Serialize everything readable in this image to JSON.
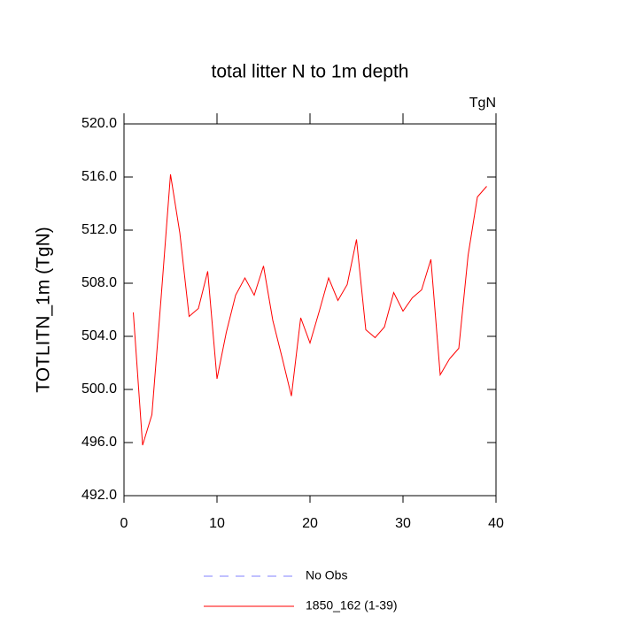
{
  "chart_data": {
    "type": "line",
    "title": "total litter N to 1m depth",
    "units_label": "TgN",
    "ylabel": "TOTLITN_1m  (TgN)",
    "x": [
      1,
      2,
      3,
      4,
      5,
      6,
      7,
      8,
      9,
      10,
      11,
      12,
      13,
      14,
      15,
      16,
      17,
      18,
      19,
      20,
      21,
      22,
      23,
      24,
      25,
      26,
      27,
      28,
      29,
      30,
      31,
      32,
      33,
      34,
      35,
      36,
      37,
      38,
      39
    ],
    "series": [
      {
        "name": "No Obs",
        "color": "#8080ff",
        "dashed": true,
        "values": [
          null,
          null,
          null,
          null,
          null,
          null,
          null,
          null,
          null,
          null,
          null,
          null,
          null,
          null,
          null,
          null,
          null,
          null,
          null,
          null,
          null,
          null,
          null,
          null,
          null,
          null,
          null,
          null,
          null,
          null,
          null,
          null,
          null,
          null,
          null,
          null,
          null,
          null,
          null
        ]
      },
      {
        "name": "1850_162 (1-39)",
        "color": "#ff0000",
        "dashed": false,
        "values": [
          505.8,
          495.8,
          498.1,
          507.0,
          516.2,
          511.8,
          505.5,
          506.1,
          508.9,
          500.8,
          504.3,
          507.1,
          508.4,
          507.1,
          509.3,
          505.2,
          502.4,
          499.5,
          505.4,
          503.5,
          505.9,
          508.4,
          506.7,
          507.9,
          511.3,
          504.5,
          503.9,
          504.7,
          507.3,
          505.9,
          506.9,
          507.5,
          509.8,
          501.1,
          502.3,
          503.1,
          510.1,
          514.5,
          515.3
        ]
      }
    ],
    "xlim": [
      0,
      40
    ],
    "xticks": [
      0,
      10,
      20,
      30,
      40
    ],
    "ylim": [
      492,
      520
    ],
    "yticks": [
      {
        "value": 492,
        "label": "492.0"
      },
      {
        "value": 496,
        "label": "496.0"
      },
      {
        "value": 500,
        "label": "500.0"
      },
      {
        "value": 504,
        "label": "504.0"
      },
      {
        "value": 508,
        "label": "508.0"
      },
      {
        "value": 512,
        "label": "512.0"
      },
      {
        "value": 516,
        "label": "516.0"
      },
      {
        "value": 520,
        "label": "520.0"
      }
    ]
  }
}
